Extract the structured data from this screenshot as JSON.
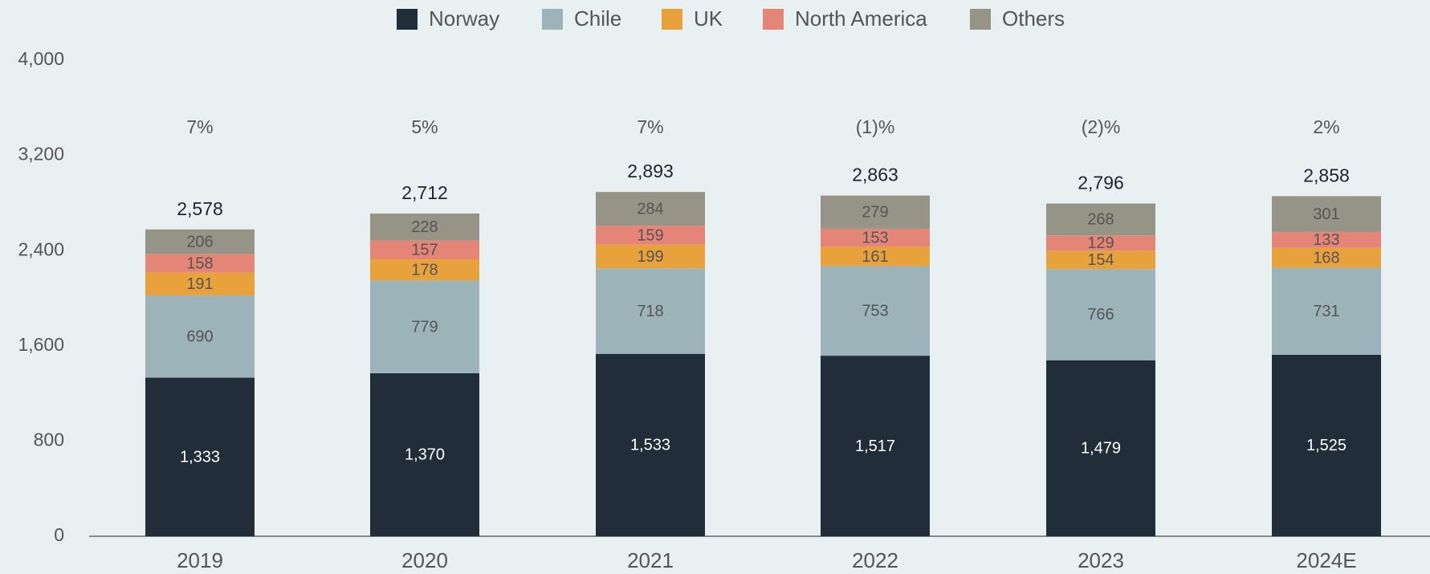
{
  "chart_data": {
    "type": "stacked_bar",
    "categories": [
      "2019",
      "2020",
      "2021",
      "2022",
      "2023",
      "2024E"
    ],
    "series": [
      {
        "name": "Norway",
        "color": "#212d38",
        "values": [
          1333,
          1370,
          1533,
          1517,
          1479,
          1525
        ],
        "value_labels": [
          "1,333",
          "1,370",
          "1,533",
          "1,517",
          "1,479",
          "1,525"
        ]
      },
      {
        "name": "Chile",
        "color": "#9bb3b9",
        "values": [
          690,
          779,
          718,
          753,
          766,
          731
        ]
      },
      {
        "name": "UK",
        "color": "#e8a23b",
        "values": [
          191,
          178,
          199,
          161,
          154,
          168
        ]
      },
      {
        "name": "North America",
        "color": "#e58577",
        "values": [
          158,
          157,
          159,
          153,
          129,
          133
        ]
      },
      {
        "name": "Others",
        "color": "#959487",
        "values": [
          206,
          228,
          284,
          279,
          268,
          301
        ]
      }
    ],
    "totals": {
      "values": [
        2578,
        2712,
        2893,
        2863,
        2796,
        2858
      ],
      "value_labels": [
        "2,578",
        "2,712",
        "2,893",
        "2,863",
        "2,796",
        "2,858"
      ]
    },
    "growth_labels": [
      "7%",
      "5%",
      "7%",
      "(1)%",
      "(2)%",
      "2%"
    ],
    "ylim": [
      0,
      4000
    ],
    "yticks": [
      0,
      800,
      {
        "value": 1600,
        "label": "1,600"
      },
      {
        "value": 2400,
        "label": "2,400"
      },
      {
        "value": 3200,
        "label": "3,200"
      },
      {
        "value": 4000,
        "label": "4,000"
      }
    ],
    "legend": "top"
  }
}
